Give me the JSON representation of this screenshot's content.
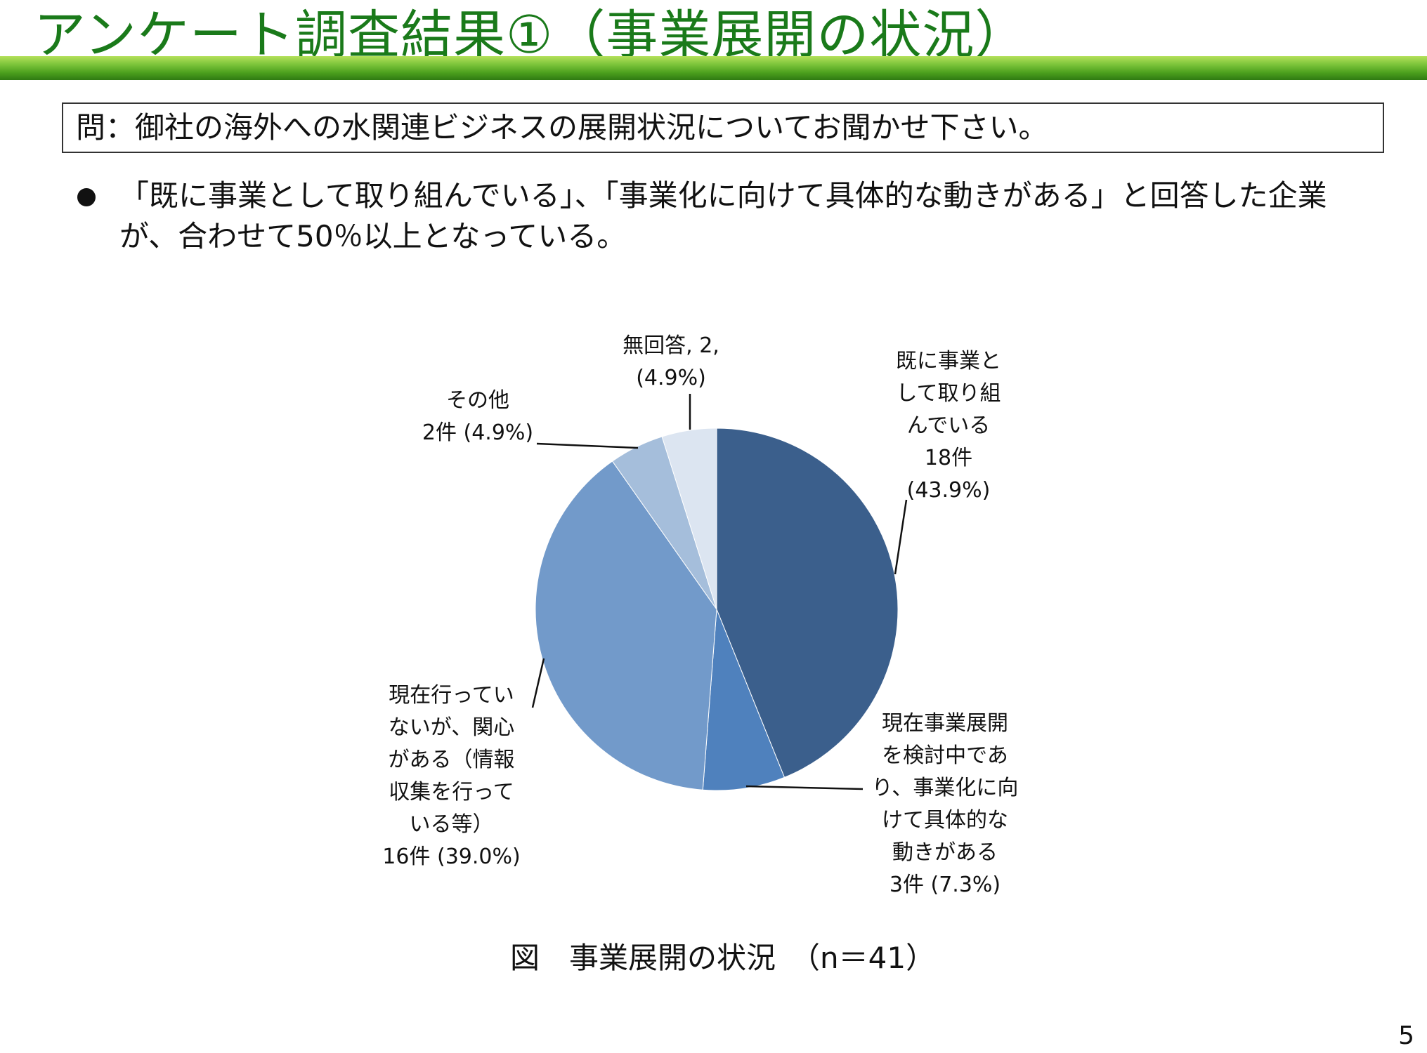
{
  "title": "アンケート調査結果①（事業展開の状況）",
  "question": "問：御社の海外への水関連ビジネスの展開状況についてお聞かせ下さい。",
  "bullet": "「既に事業として取り組んでいる」、「事業化に向けて具体的な動きがある」と回答した企業が、合わせて50％以上となっている。",
  "caption": "図　事業展開の状況　（n＝41）",
  "page_number": "5",
  "chart_data": {
    "type": "pie",
    "title": "",
    "n": 41,
    "slices": [
      {
        "key": "existing",
        "label_lines": [
          "既に事業と",
          "して取り組",
          "んでいる",
          "18件",
          "(43.9%)"
        ],
        "count": 18,
        "percent": 43.9,
        "color": "#3b5f8c"
      },
      {
        "key": "considering",
        "label_lines": [
          "現在事業展開",
          "を検討中であ",
          "り、事業化に向",
          "けて具体的な",
          "動きがある",
          "3件 (7.3%)"
        ],
        "count": 3,
        "percent": 7.3,
        "color": "#4f81bd"
      },
      {
        "key": "interested",
        "label_lines": [
          "現在行ってい",
          "ないが、関心",
          "がある（情報",
          "収集を行って",
          "いる等）",
          "16件 (39.0%)"
        ],
        "count": 16,
        "percent": 39.0,
        "color": "#729aca"
      },
      {
        "key": "other",
        "label_lines": [
          "その他",
          "2件 (4.9%)"
        ],
        "count": 2,
        "percent": 4.9,
        "color": "#a5bedb"
      },
      {
        "key": "no_answer",
        "label_lines": [
          "無回答, 2,",
          "(4.9%)"
        ],
        "count": 2,
        "percent": 4.9,
        "color": "#dce5f1"
      }
    ]
  }
}
